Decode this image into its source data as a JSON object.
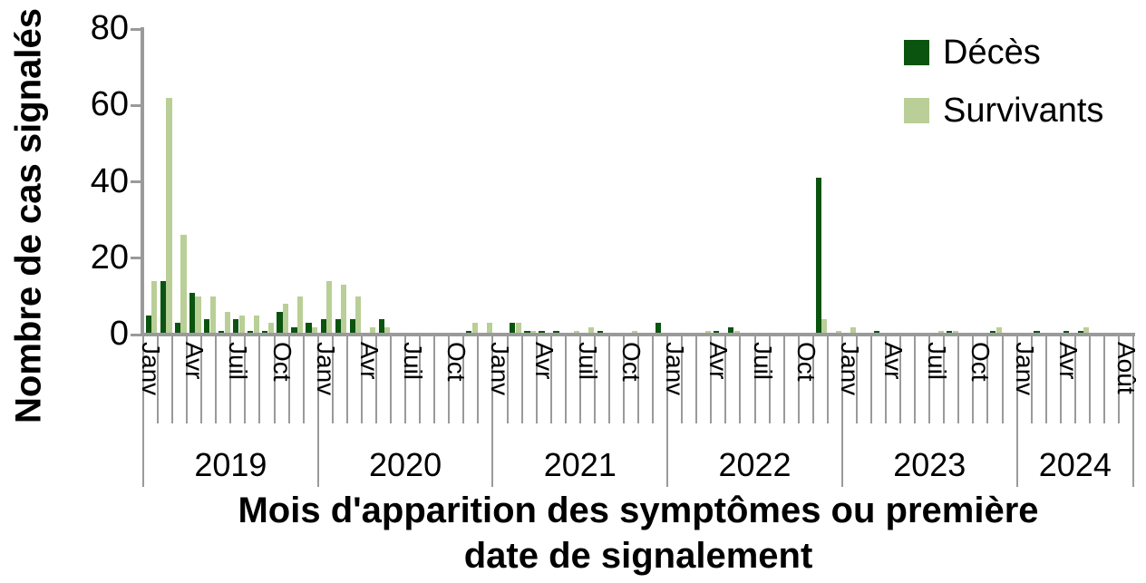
{
  "legend": {
    "items": [
      {
        "label": "Décès",
        "color": "#0a5410"
      },
      {
        "label": "Survivants",
        "color": "#b9cf97"
      }
    ]
  },
  "colors": {
    "deces": "#0a5410",
    "survivants": "#b9cf97",
    "axis": "#9a9a9a",
    "text": "#000000"
  },
  "chart_data": {
    "type": "bar",
    "title": "",
    "ylabel": "Nombre de cas signalés",
    "xlabel": "Mois d'apparition des symptômes ou première date de signalement",
    "xlabel_lines": [
      "Mois d'apparition des symptômes ou première",
      "date de signalement"
    ],
    "ylim": [
      0,
      80
    ],
    "yticks": [
      0,
      20,
      40,
      60,
      80
    ],
    "grid": false,
    "legend_position": "top-right",
    "x_start_month": "Janv 2019",
    "x_end_month": "Août 2024",
    "years": [
      "2019",
      "2020",
      "2021",
      "2022",
      "2023",
      "2024"
    ],
    "months_per_year": [
      12,
      12,
      12,
      12,
      12,
      8
    ],
    "month_tick_labels": {
      "0": "Janv",
      "3": "Avr",
      "6": "Juil",
      "9": "Oct",
      "12": "Janv",
      "15": "Avr",
      "18": "Juil",
      "21": "Oct",
      "24": "Janv",
      "27": "Avr",
      "30": "Juil",
      "33": "Oct",
      "36": "Janv",
      "39": "Avr",
      "42": "Juil",
      "45": "Oct",
      "48": "Janv",
      "51": "Avr",
      "54": "Juil",
      "57": "Oct",
      "60": "Janv",
      "63": "Avr",
      "67": "Août"
    },
    "series": [
      {
        "name": "Décès",
        "color": "#0a5410",
        "values": [
          5,
          14,
          3,
          11,
          4,
          1,
          4,
          1,
          1,
          6,
          2,
          3,
          4,
          4,
          4,
          0,
          4,
          0,
          0,
          0,
          0,
          0,
          1,
          0,
          0,
          3,
          1,
          1,
          1,
          0,
          0,
          1,
          0,
          0,
          0,
          3,
          0,
          0,
          0,
          1,
          2,
          0,
          0,
          0,
          0,
          0,
          41,
          0,
          0,
          0,
          1,
          0,
          0,
          0,
          0,
          1,
          0,
          0,
          1,
          0,
          0,
          1,
          0,
          1,
          1,
          0,
          0,
          0
        ]
      },
      {
        "name": "Survivants",
        "color": "#b9cf97",
        "values": [
          14,
          62,
          26,
          10,
          10,
          6,
          5,
          5,
          3,
          8,
          10,
          2,
          14,
          13,
          10,
          2,
          2,
          0,
          0,
          0,
          0,
          0,
          3,
          3,
          0,
          3,
          1,
          0,
          0,
          1,
          2,
          0,
          0,
          1,
          0,
          0,
          0,
          0,
          1,
          0,
          1,
          0,
          0,
          0,
          0,
          0,
          4,
          1,
          2,
          0,
          0,
          0,
          0,
          0,
          1,
          1,
          0,
          0,
          2,
          0,
          0,
          0,
          0,
          0,
          2,
          0,
          0,
          0
        ]
      }
    ]
  }
}
